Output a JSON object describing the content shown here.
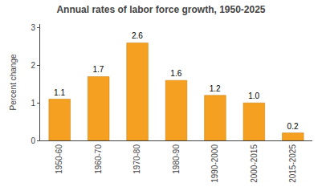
{
  "chart_data": {
    "type": "bar",
    "title": "Annual rates of labor force growth, 1950-2025",
    "categories": [
      "1950-60",
      "1960-70",
      "1970-80",
      "1980-90",
      "1990-2000",
      "2000-2015",
      "2015-2025"
    ],
    "values": [
      1.1,
      1.7,
      2.6,
      1.6,
      1.2,
      1.0,
      0.2
    ],
    "value_labels": [
      "1.1",
      "1.7",
      "2.6",
      "1.6",
      "1.2",
      "1.0",
      "0.2"
    ],
    "data_labels": true,
    "color": "#F5A020",
    "ylabel": "Percent change",
    "ylim": [
      0,
      3.1
    ],
    "yticks": [
      0,
      1,
      2,
      3
    ],
    "grid": false
  }
}
